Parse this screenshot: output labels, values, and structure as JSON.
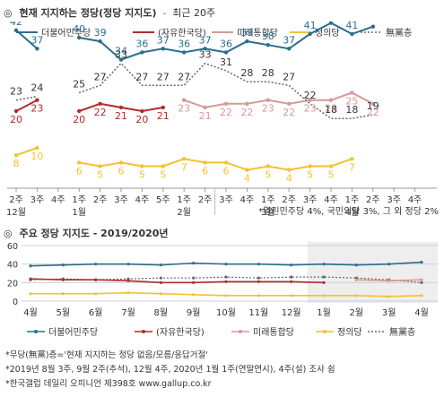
{
  "section1": {
    "icon": "◎",
    "title": "현재 지지하는 정당(정당 지지도)",
    "sep": "-",
    "subtitle": "최근 20주"
  },
  "section2": {
    "icon": "◎",
    "title": "주요 정당 지지도 - 2019/2020년"
  },
  "footnote1": "*열린민주당 4%, 국민의당 3%, 그 외 정당 2%",
  "sources": [
    "*무당(無黨)층='현재 지지하는 정당 없음/모름/응답거절'",
    "*2019년 8월 3주, 9월 2주(추석), 12월 4주, 2020년 1월 1주(연말연시), 4주(설) 조사 쉼",
    "*한국갤럽 데일리 오피니언 제398호 www.gallup.co.kr"
  ],
  "colors": {
    "democratic": "#2b6e8f",
    "lkp": "#b22c2c",
    "utp": "#d49a95",
    "justice": "#f2c230",
    "independent": "#666666"
  },
  "chart_data": [
    {
      "type": "line",
      "title": "현재 지지하는 정당(정당 지지도) - 최근 20주",
      "x": [
        "3주",
        "4주",
        "1주",
        "2주",
        "3주",
        "4주",
        "5주",
        "1주",
        "2주",
        "3주",
        "4주",
        "1주",
        "2주",
        "3주",
        "4주",
        "1주",
        "2주",
        "3주",
        "4주",
        "5주"
      ],
      "tick_labels": [
        "3주",
        "4주",
        "1주",
        "2주",
        "3주",
        "4주",
        "5주",
        "1주",
        "2주",
        "3주",
        "4주",
        "1주",
        "2주",
        "3주",
        "4주",
        "1주",
        "2주",
        "3주",
        "4주",
        "5주"
      ],
      "x_display": [
        "2주",
        "3주",
        "4주",
        "1주",
        "2주",
        "3주",
        "4주",
        "5주",
        "1주",
        "2주",
        "3주",
        "4주",
        "1주",
        "2주",
        "3주",
        "4주",
        "1주",
        "2주",
        "3주",
        "4주"
      ],
      "month_labels": [
        {
          "label": "12월",
          "index": 0
        },
        {
          "label": "1월",
          "index": 3
        },
        {
          "label": "2월",
          "index": 8
        },
        {
          "label": "3월",
          "index": 12
        },
        {
          "label": "4월",
          "index": 16
        }
      ],
      "gap_after_index": 9,
      "series": [
        {
          "name": "더불어민주당",
          "key": "democratic",
          "values": [
            42,
            37,
            null,
            40,
            39,
            34,
            36,
            37,
            36,
            37,
            36,
            39,
            38,
            37,
            41,
            44,
            41,
            43,
            null,
            null
          ]
        },
        {
          "name": "(자유한국당)",
          "key": "lkp",
          "values": [
            20,
            23,
            null,
            20,
            22,
            21,
            20,
            21,
            null,
            null,
            null,
            null,
            null,
            null,
            null,
            null,
            null,
            null,
            null,
            null
          ]
        },
        {
          "name": "미래통합당",
          "key": "utp",
          "values": [
            null,
            null,
            null,
            null,
            null,
            null,
            null,
            null,
            23,
            21,
            22,
            22,
            23,
            22,
            23,
            23,
            25,
            22,
            null,
            null
          ]
        },
        {
          "name": "정의당",
          "key": "justice",
          "values": [
            8,
            10,
            null,
            6,
            5,
            6,
            5,
            5,
            7,
            6,
            6,
            4,
            5,
            4,
            5,
            5,
            7,
            null,
            null,
            null
          ]
        },
        {
          "name": "無黨층",
          "key": "independent",
          "values": [
            23,
            24,
            null,
            25,
            27,
            33,
            27,
            27,
            27,
            33,
            31,
            28,
            28,
            27,
            22,
            18,
            18,
            19,
            null,
            null
          ]
        }
      ]
    },
    {
      "type": "line",
      "title": "주요 정당 지지도 - 2019/2020년",
      "months": [
        "4월",
        "5월",
        "6월",
        "7월",
        "8월",
        "9월",
        "10월",
        "11월",
        "12월",
        "1월",
        "2월",
        "3월",
        "4월"
      ],
      "ylim": [
        0,
        60
      ],
      "yticks": [
        0,
        20,
        40,
        60
      ],
      "highlight": "최근 20주",
      "series": [
        {
          "name": "더불어민주당",
          "key": "democratic",
          "values": [
            38,
            39,
            40,
            40,
            39,
            41,
            40,
            40,
            39,
            40,
            39,
            40,
            42
          ]
        },
        {
          "name": "(자유한국당)",
          "key": "lkp",
          "values": [
            24,
            23,
            23,
            22,
            20,
            20,
            21,
            21,
            21,
            20,
            null,
            null,
            null
          ]
        },
        {
          "name": "미래통합당",
          "key": "utp",
          "values": [
            null,
            null,
            null,
            null,
            null,
            null,
            null,
            null,
            null,
            null,
            23,
            22,
            23
          ]
        },
        {
          "name": "정의당",
          "key": "justice",
          "values": [
            8,
            8,
            8,
            9,
            8,
            7,
            6,
            6,
            6,
            6,
            6,
            5,
            6
          ]
        },
        {
          "name": "無黨층",
          "key": "independent",
          "values": [
            23,
            24,
            23,
            24,
            25,
            25,
            26,
            25,
            26,
            26,
            25,
            23,
            20
          ]
        }
      ]
    }
  ]
}
